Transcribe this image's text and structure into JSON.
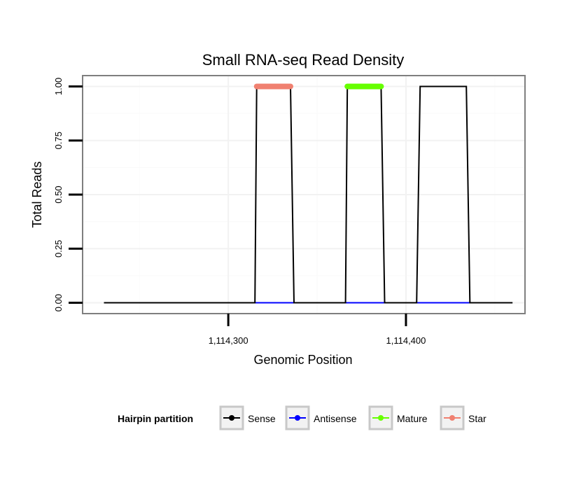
{
  "chart_data": {
    "type": "line",
    "title": "Small RNA-seq Read Density",
    "xlabel": "Genomic Position",
    "ylabel": "Total Reads",
    "xlim": [
      1114218,
      1114467
    ],
    "ylim": [
      -0.05,
      1.05
    ],
    "x_ticks": [
      {
        "value": 1114300,
        "label": "1,114,300"
      },
      {
        "value": 1114400,
        "label": "1,114,400"
      }
    ],
    "y_ticks": [
      {
        "value": 0.0,
        "label": "0.00"
      },
      {
        "value": 0.25,
        "label": "0.25"
      },
      {
        "value": 0.5,
        "label": "0.50"
      },
      {
        "value": 0.75,
        "label": "0.75"
      },
      {
        "value": 1.0,
        "label": "1.00"
      }
    ],
    "grid": true,
    "legend": {
      "title": "Hairpin partition",
      "position": "bottom",
      "entries": [
        {
          "name": "Sense",
          "color": "#000000"
        },
        {
          "name": "Antisense",
          "color": "#0000ff"
        },
        {
          "name": "Mature",
          "color": "#66ff00"
        },
        {
          "name": "Star",
          "color": "#f08070"
        }
      ]
    },
    "series": [
      {
        "name": "Sense",
        "color": "#000000",
        "x": [
          1114230,
          1114315,
          1114316,
          1114335,
          1114337,
          1114366,
          1114367,
          1114386,
          1114388,
          1114406,
          1114408,
          1114434,
          1114436,
          1114460
        ],
        "y": [
          0,
          0,
          1,
          1,
          0,
          0,
          1,
          1,
          0,
          0,
          1,
          1,
          0,
          0
        ]
      },
      {
        "name": "Antisense",
        "color": "#0000ff",
        "x": [
          1114315,
          1114337,
          1114366,
          1114388,
          1114406,
          1114436
        ],
        "y": [
          0,
          0,
          0,
          0,
          0,
          0
        ],
        "segments": [
          [
            1114315,
            1114337
          ],
          [
            1114366,
            1114388
          ],
          [
            1114406,
            1114436
          ]
        ]
      },
      {
        "name": "Mature",
        "color": "#66ff00",
        "x": [
          1114367,
          1114386
        ],
        "y": [
          1,
          1
        ]
      },
      {
        "name": "Star",
        "color": "#f08070",
        "x": [
          1114316,
          1114335
        ],
        "y": [
          1,
          1
        ]
      }
    ]
  }
}
